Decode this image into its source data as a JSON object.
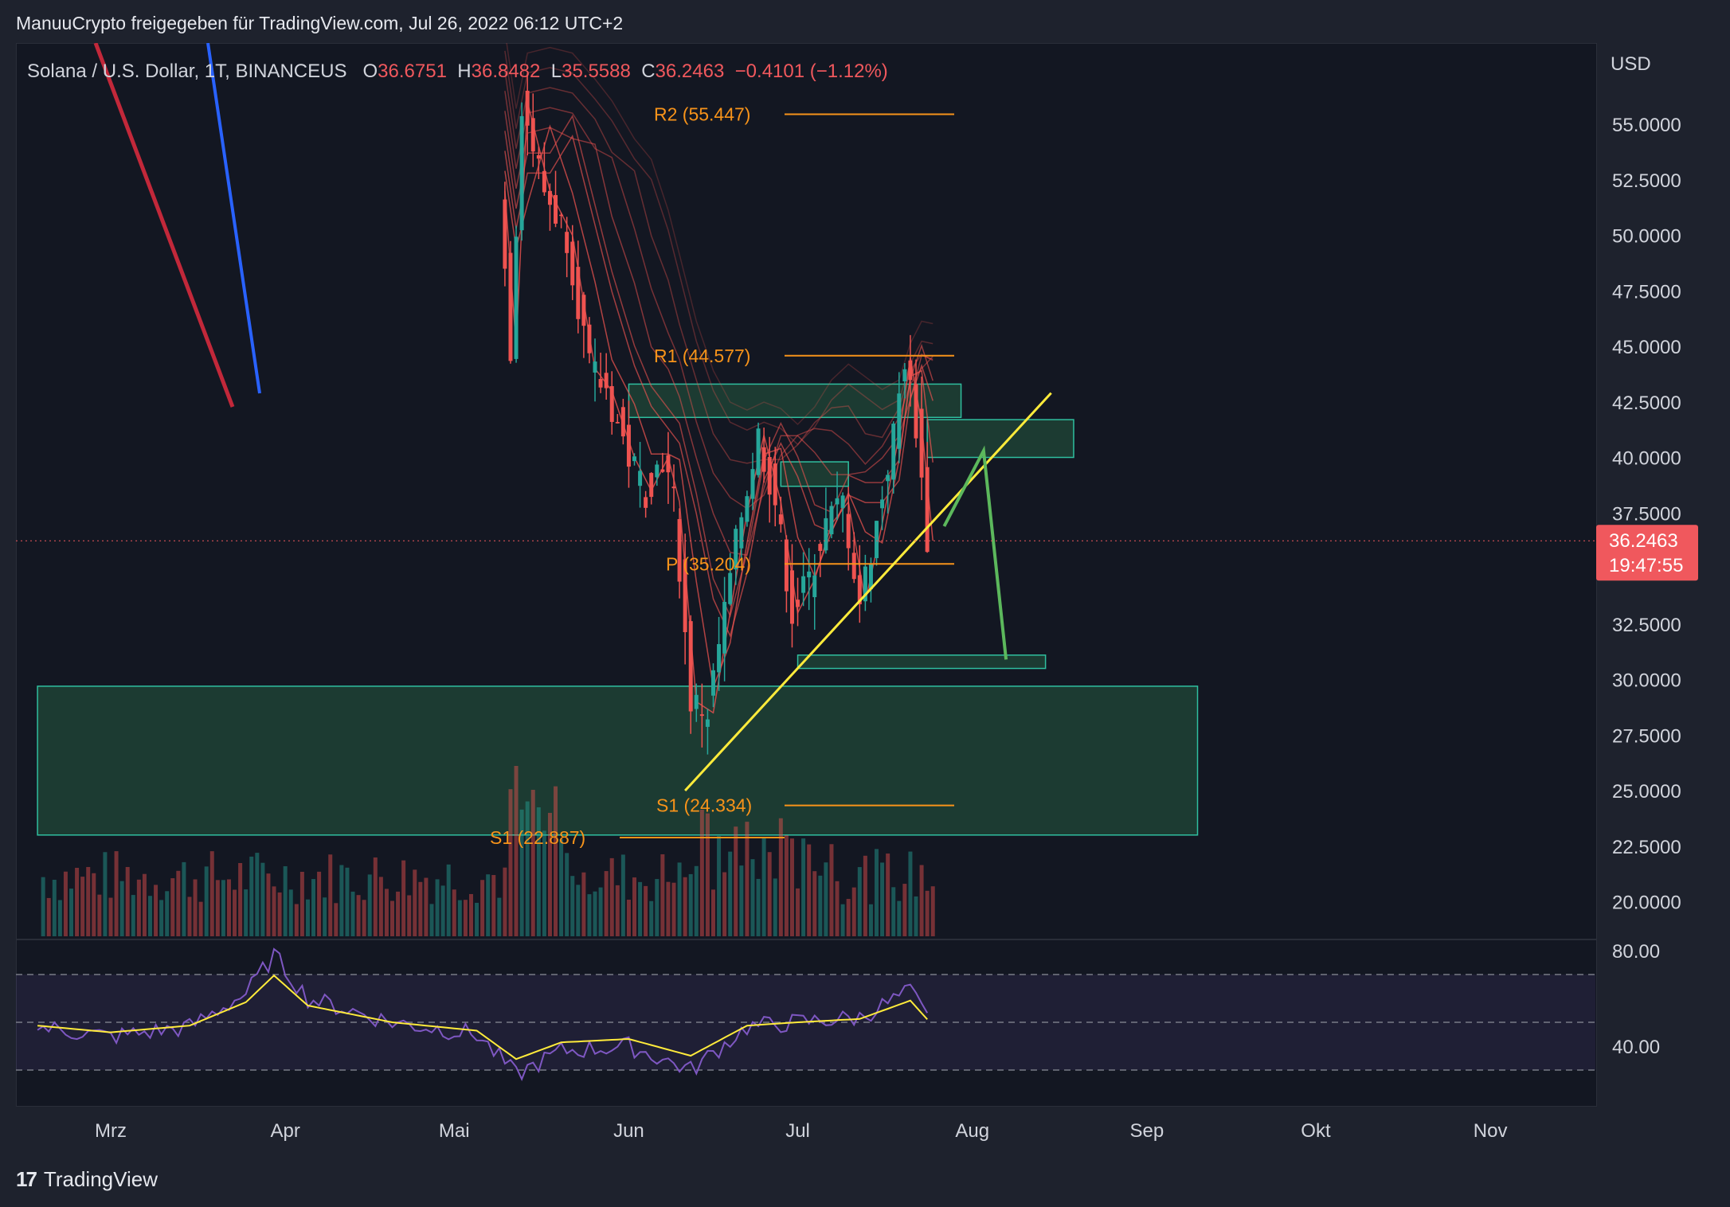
{
  "header": {
    "publisher_line": "ManuuCrypto freigegeben für TradingView.com, Jul 26, 2022 06:12 UTC+2"
  },
  "symbol": {
    "name": "Solana / U.S. Dollar, 1T, BINANCEUS",
    "open_label": "O",
    "open": "36.6751",
    "high_label": "H",
    "high": "36.8482",
    "low_label": "L",
    "low": "35.5588",
    "close_label": "C",
    "close": "36.2463",
    "change": "−0.4101 (−1.12%)"
  },
  "price_axis": {
    "currency": "USD",
    "ticks": [
      "55.0000",
      "52.5000",
      "50.0000",
      "47.5000",
      "45.0000",
      "42.5000",
      "40.0000",
      "37.5000",
      "32.5000",
      "30.0000",
      "27.5000",
      "25.0000",
      "22.5000",
      "20.0000"
    ],
    "last_price": "36.2463",
    "countdown": "19:47:55"
  },
  "rsi_axis": {
    "ticks": [
      "80.00",
      "40.00"
    ]
  },
  "time_axis": {
    "ticks": [
      "Mrz",
      "Apr",
      "Mai",
      "Jun",
      "Jul",
      "Aug",
      "Sep",
      "Okt",
      "Nov"
    ]
  },
  "pivots": [
    {
      "label": "R2 (55.447)",
      "price": 55.447
    },
    {
      "label": "R1 (44.577)",
      "price": 44.577
    },
    {
      "label": "P (35.204)",
      "price": 35.204
    },
    {
      "label": "S1 (24.334)",
      "price": 24.334
    },
    {
      "label": "S1 (22.887)",
      "price": 22.887
    }
  ],
  "footer": {
    "brand": "TradingView",
    "logo_text": "17"
  },
  "colors": {
    "background": "#131722",
    "up": "#26a69a",
    "down": "#ef5350",
    "pivot": "#f7931a",
    "zone": "#2e7d4f",
    "trendline": "#ffeb3b",
    "projection": "#5cb85c",
    "rsi": "#7e57c2",
    "rsi_ma": "#ffeb3b"
  },
  "chart_data": {
    "type": "candlestick",
    "title": "Solana / U.S. Dollar, 1T, BINANCEUS",
    "y_unit": "USD",
    "ylim": [
      18,
      58
    ],
    "x_range": [
      "2022-02-16",
      "2022-11-30"
    ],
    "rsi_range": [
      10,
      90
    ],
    "rsi_levels": [
      70,
      50,
      30
    ],
    "price_path": [
      {
        "date": "2022-05-10",
        "price": 52.0
      },
      {
        "date": "2022-05-12",
        "price": 45.0
      },
      {
        "date": "2022-05-14",
        "price": 56.0
      },
      {
        "date": "2022-05-18",
        "price": 52.0
      },
      {
        "date": "2022-05-22",
        "price": 50.0
      },
      {
        "date": "2022-05-26",
        "price": 44.0
      },
      {
        "date": "2022-05-29",
        "price": 43.0
      },
      {
        "date": "2022-06-02",
        "price": 40.0
      },
      {
        "date": "2022-06-05",
        "price": 38.5
      },
      {
        "date": "2022-06-08",
        "price": 40.0
      },
      {
        "date": "2022-06-10",
        "price": 38.0
      },
      {
        "date": "2022-06-13",
        "price": 29.0
      },
      {
        "date": "2022-06-16",
        "price": 28.5
      },
      {
        "date": "2022-06-19",
        "price": 33.0
      },
      {
        "date": "2022-06-22",
        "price": 37.5
      },
      {
        "date": "2022-06-25",
        "price": 41.0
      },
      {
        "date": "2022-06-28",
        "price": 38.0
      },
      {
        "date": "2022-07-01",
        "price": 33.0
      },
      {
        "date": "2022-07-04",
        "price": 34.5
      },
      {
        "date": "2022-07-07",
        "price": 37.0
      },
      {
        "date": "2022-07-10",
        "price": 38.0
      },
      {
        "date": "2022-07-13",
        "price": 33.5
      },
      {
        "date": "2022-07-16",
        "price": 37.0
      },
      {
        "date": "2022-07-19",
        "price": 41.0
      },
      {
        "date": "2022-07-21",
        "price": 44.5
      },
      {
        "date": "2022-07-23",
        "price": 41.5
      },
      {
        "date": "2022-07-25",
        "price": 36.25
      }
    ],
    "zones": [
      {
        "from": "2022-02-16",
        "to": "2022-09-10",
        "low": 23.0,
        "high": 29.7
      },
      {
        "from": "2022-06-01",
        "to": "2022-07-30",
        "low": 41.8,
        "high": 43.3
      },
      {
        "from": "2022-07-24",
        "to": "2022-08-19",
        "low": 40.0,
        "high": 41.7
      },
      {
        "from": "2022-06-28",
        "to": "2022-07-10",
        "low": 38.7,
        "high": 39.8
      },
      {
        "from": "2022-07-01",
        "to": "2022-08-14",
        "low": 30.5,
        "high": 31.1
      }
    ],
    "trendline": [
      {
        "date": "2022-06-11",
        "price": 25.0
      },
      {
        "date": "2022-08-15",
        "price": 42.9
      }
    ],
    "projection": [
      {
        "date": "2022-07-27",
        "price": 36.9
      },
      {
        "date": "2022-08-03",
        "price": 40.3
      },
      {
        "date": "2022-08-07",
        "price": 30.9
      }
    ],
    "rsi_points": [
      {
        "date": "2022-02-16",
        "rsi": 48
      },
      {
        "date": "2022-03-01",
        "rsi": 44
      },
      {
        "date": "2022-03-15",
        "rsi": 48
      },
      {
        "date": "2022-03-25",
        "rsi": 62
      },
      {
        "date": "2022-03-30",
        "rsi": 78
      },
      {
        "date": "2022-04-05",
        "rsi": 60
      },
      {
        "date": "2022-04-20",
        "rsi": 50
      },
      {
        "date": "2022-05-05",
        "rsi": 45
      },
      {
        "date": "2022-05-12",
        "rsi": 28
      },
      {
        "date": "2022-05-20",
        "rsi": 38
      },
      {
        "date": "2022-06-01",
        "rsi": 40
      },
      {
        "date": "2022-06-12",
        "rsi": 30
      },
      {
        "date": "2022-06-22",
        "rsi": 48
      },
      {
        "date": "2022-07-01",
        "rsi": 50
      },
      {
        "date": "2022-07-12",
        "rsi": 52
      },
      {
        "date": "2022-07-21",
        "rsi": 63
      },
      {
        "date": "2022-07-25",
        "rsi": 48
      }
    ]
  }
}
